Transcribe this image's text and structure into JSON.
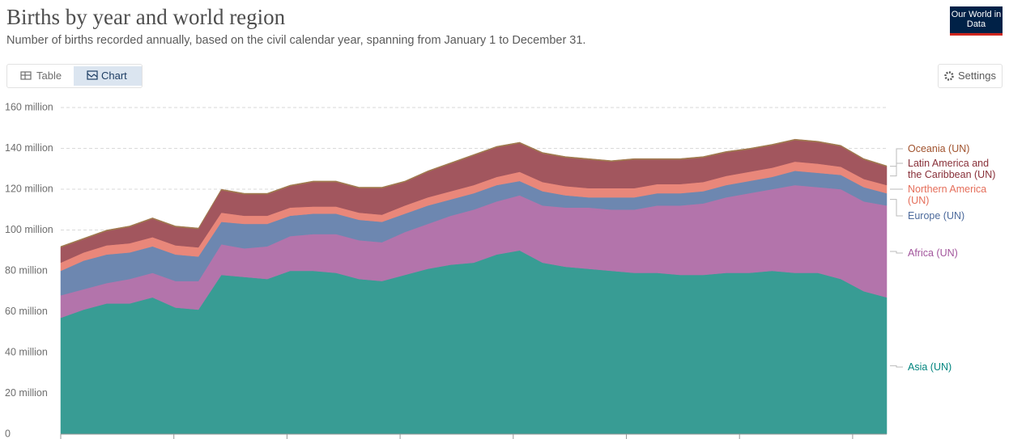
{
  "chart_data": {
    "type": "stacked-area",
    "title": "Births by year and world region",
    "subtitle": "Number of births recorded annually, based on the civil calendar year, spanning from January 1 to December 31.",
    "logo": "Our World in Data",
    "tabs": [
      "Table",
      "Chart"
    ],
    "settings": "Settings",
    "categories": [
      null,
      null,
      null,
      null,
      null,
      null,
      null,
      null,
      null,
      null,
      null,
      null,
      null,
      null,
      null,
      null,
      null,
      null,
      null,
      null,
      null,
      null,
      null,
      null,
      null,
      null,
      null,
      null,
      null,
      null,
      null,
      null,
      null,
      null,
      null,
      null,
      null
    ],
    "series": [
      {
        "name": "Asia (UN)",
        "color": "#389c94",
        "label_color": "#00847e",
        "values": [
          57,
          61,
          64,
          64,
          67,
          62,
          61,
          78,
          77,
          76,
          80,
          80,
          79,
          76,
          75,
          78,
          81,
          83,
          84,
          88,
          90,
          84,
          82,
          81,
          80,
          79,
          79,
          78,
          78,
          79,
          79,
          80,
          79,
          79,
          76,
          70,
          67
        ]
      },
      {
        "name": "Africa (UN)",
        "color": "#b374ab",
        "label_color": "#a2559c",
        "values": [
          11,
          10,
          10,
          12,
          12,
          13,
          14,
          15,
          14,
          16,
          17,
          18,
          19,
          19,
          19,
          21,
          22,
          24,
          26,
          26,
          27,
          28,
          29,
          30,
          30,
          31,
          33,
          34,
          35,
          37,
          39,
          40,
          43,
          42,
          44,
          44,
          45
        ]
      },
      {
        "name": "Europe (UN)",
        "color": "#6d87b0",
        "label_color": "#4c6a9c",
        "values": [
          12,
          14,
          14,
          13,
          13,
          13,
          12,
          11,
          12,
          11,
          10,
          10,
          10,
          10,
          10,
          9,
          9,
          8,
          8,
          8,
          7,
          7,
          6,
          5,
          6,
          6,
          6,
          6,
          6,
          6,
          6,
          6,
          7,
          7,
          7,
          7,
          6
        ]
      },
      {
        "name": "Northern America (UN)",
        "color": "#e9877a",
        "label_color": "#e56e5a",
        "values": [
          4,
          4,
          4.5,
          4.5,
          4.5,
          4.5,
          4.5,
          4.5,
          4,
          4,
          4,
          3.5,
          3.5,
          3.5,
          3.5,
          4,
          4,
          4,
          4,
          4,
          4.5,
          4.5,
          4.5,
          4.5,
          4.5,
          4.5,
          4.5,
          4.5,
          4.5,
          4.5,
          4.5,
          4.5,
          4.5,
          4.5,
          4,
          4,
          4
        ]
      },
      {
        "name": "Latin America and the Caribbean (UN)",
        "color": "#a2565e",
        "label_color": "#883039",
        "values": [
          7.5,
          6.5,
          7,
          8,
          9,
          9,
          9,
          11,
          10.5,
          10.5,
          10.5,
          12,
          12,
          12,
          13,
          11.5,
          12.5,
          13.5,
          14.5,
          14.5,
          14,
          14,
          14,
          14,
          13,
          14,
          12,
          12,
          12,
          11.5,
          11,
          11,
          10.5,
          10.5,
          10,
          9.5,
          9
        ]
      },
      {
        "name": "Oceania (UN)",
        "color": "#a0794f",
        "label_color": "#a0522d",
        "values": [
          0.5,
          0.5,
          0.5,
          0.5,
          0.5,
          0.5,
          0.5,
          0.5,
          0.5,
          0.5,
          0.5,
          0.5,
          0.5,
          0.5,
          0.5,
          0.5,
          0.5,
          0.5,
          0.5,
          0.5,
          0.5,
          0.5,
          0.5,
          0.5,
          0.5,
          0.5,
          0.5,
          0.5,
          0.5,
          0.5,
          0.5,
          0.5,
          0.5,
          0.5,
          0.5,
          0.5,
          0.5
        ]
      }
    ],
    "ylim": [
      0,
      160
    ],
    "yticks": [
      0,
      {
        "value": 20,
        "label": "20 million"
      },
      {
        "value": 40,
        "label": "40 million"
      },
      {
        "value": 60,
        "label": "60 million"
      },
      {
        "value": 80,
        "label": "80 million"
      },
      {
        "value": 100,
        "label": "100 million"
      },
      {
        "value": 120,
        "label": "120 million"
      },
      {
        "value": 140,
        "label": "140 million"
      },
      {
        "value": 160,
        "label": "160 million"
      }
    ],
    "grid": true
  }
}
